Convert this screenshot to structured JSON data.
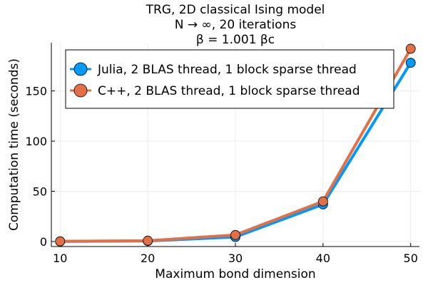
{
  "chart_data": {
    "type": "line",
    "title_lines": [
      "TRG, 2D classical Ising model",
      "N → ∞, 20 iterations",
      "β = 1.001 βc"
    ],
    "xlabel": "Maximum bond dimension",
    "ylabel": "Computation time (seconds)",
    "x": [
      10,
      20,
      30,
      40,
      50
    ],
    "xticks": [
      "10",
      "20",
      "30",
      "40",
      "50"
    ],
    "yticks": [
      "0",
      "50",
      "100",
      "150"
    ],
    "ytick_values": [
      0,
      50,
      100,
      150
    ],
    "xlim": [
      9,
      51
    ],
    "ylim": [
      -5,
      198
    ],
    "grid": true,
    "legend_position": "top-right",
    "series": [
      {
        "name": "Julia, 2 BLAS thread, 1 block sparse thread",
        "color": "#009AFA",
        "values": [
          0.1,
          0.5,
          4.5,
          37,
          178
        ]
      },
      {
        "name": "C++, 2 BLAS thread, 1 block sparse thread",
        "color": "#E26F46",
        "values": [
          0.2,
          0.8,
          6.5,
          40,
          192
        ]
      }
    ]
  }
}
